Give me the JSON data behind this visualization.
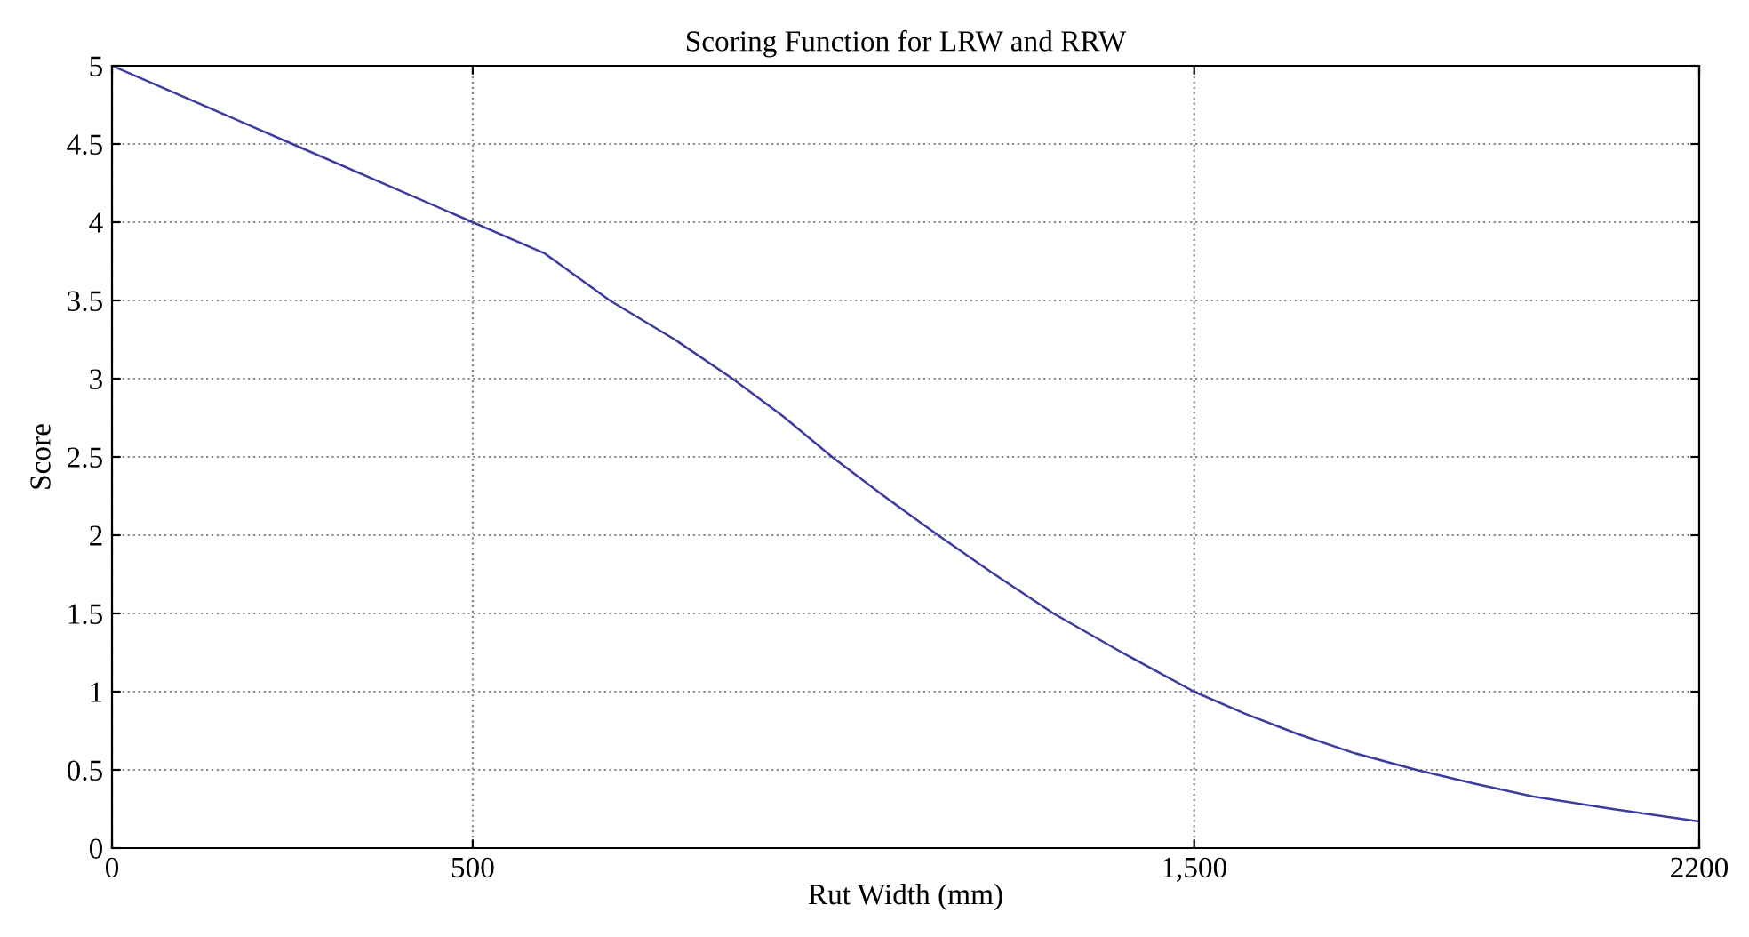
{
  "chart_data": {
    "type": "line",
    "title": "Scoring Function for LRW and RRW",
    "xlabel": "Rut Width (mm)",
    "ylabel": "Score",
    "x": [
      0,
      250,
      500,
      600,
      690,
      780,
      860,
      930,
      998,
      1070,
      1145,
      1220,
      1305,
      1400,
      1500,
      1570,
      1643,
      1720,
      1808,
      1890,
      1970,
      2080,
      2200
    ],
    "series": [
      {
        "color": "#3c3ca0",
        "values": [
          5,
          4.5,
          4,
          3.8,
          3.5,
          3.25,
          3,
          2.76,
          2.5,
          2.25,
          2,
          1.76,
          1.5,
          1.25,
          1,
          0.86,
          0.73,
          0.61,
          0.5,
          0.41,
          0.33,
          0.25,
          0.17
        ]
      }
    ],
    "xlim": [
      0,
      2200
    ],
    "xticks": [
      0,
      500,
      {
        "value": 1500,
        "label": "1,500"
      },
      2200
    ],
    "ylim": [
      0,
      5
    ],
    "yticks": [
      0,
      0.5,
      1,
      1.5,
      2,
      2.5,
      3,
      3.5,
      4,
      4.5,
      5
    ],
    "grid": true,
    "legend": false,
    "marker": "none",
    "line_style": "solid"
  }
}
